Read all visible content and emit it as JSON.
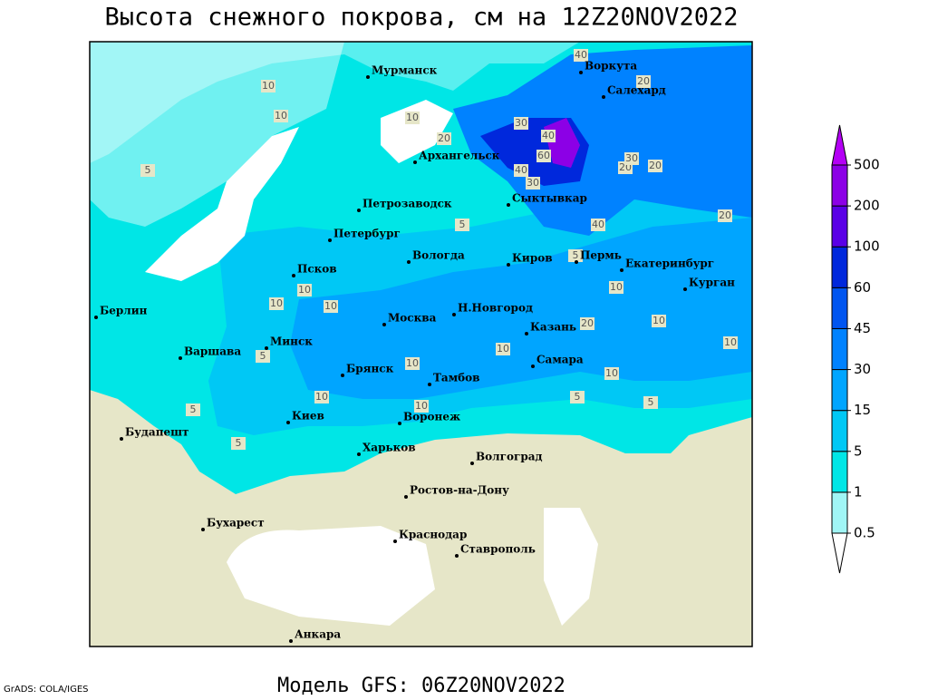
{
  "title": "Высота снежного покрова, см на 12Z20NOV2022",
  "footer": "Модель GFS: 06Z20NOV2022",
  "credit": "GrADS: COLA/IGES",
  "cities": [
    "Мурманск",
    "Воркута",
    "Салехард",
    "Архангельск",
    "Сыктывкар",
    "Петрозаводск",
    "Петербург",
    "Вологда",
    "Киров",
    "Пермь",
    "Екатеринбург",
    "Курган",
    "Псков",
    "Берлин",
    "Н.Новгород",
    "Казань",
    "Москва",
    "Варшава",
    "Минск",
    "Брянск",
    "Тамбов",
    "Самара",
    "Киев",
    "Воронеж",
    "Будапешт",
    "Харьков",
    "Волгоград",
    "Ростов-на-Дону",
    "Бухарест",
    "Краснодар",
    "Ставрополь",
    "Анкара"
  ],
  "contour_labels": [
    40,
    20,
    10,
    10,
    10,
    20,
    30,
    40,
    60,
    40,
    30,
    20,
    30,
    20,
    20,
    40,
    5,
    5,
    5,
    10,
    10,
    10,
    10,
    10,
    20,
    10,
    10,
    5,
    10,
    10,
    5,
    5,
    10,
    10,
    5,
    5
  ],
  "legend": {
    "levels": [
      0.5,
      1,
      5,
      15,
      30,
      45,
      60,
      100,
      200,
      500
    ],
    "colors": [
      "#ffffff",
      "#a0f5f5",
      "#00e6e6",
      "#00c8f5",
      "#00a5ff",
      "#0082ff",
      "#0055f0",
      "#0028dc",
      "#5a00e6",
      "#8c00e6",
      "#b400f5"
    ]
  }
}
